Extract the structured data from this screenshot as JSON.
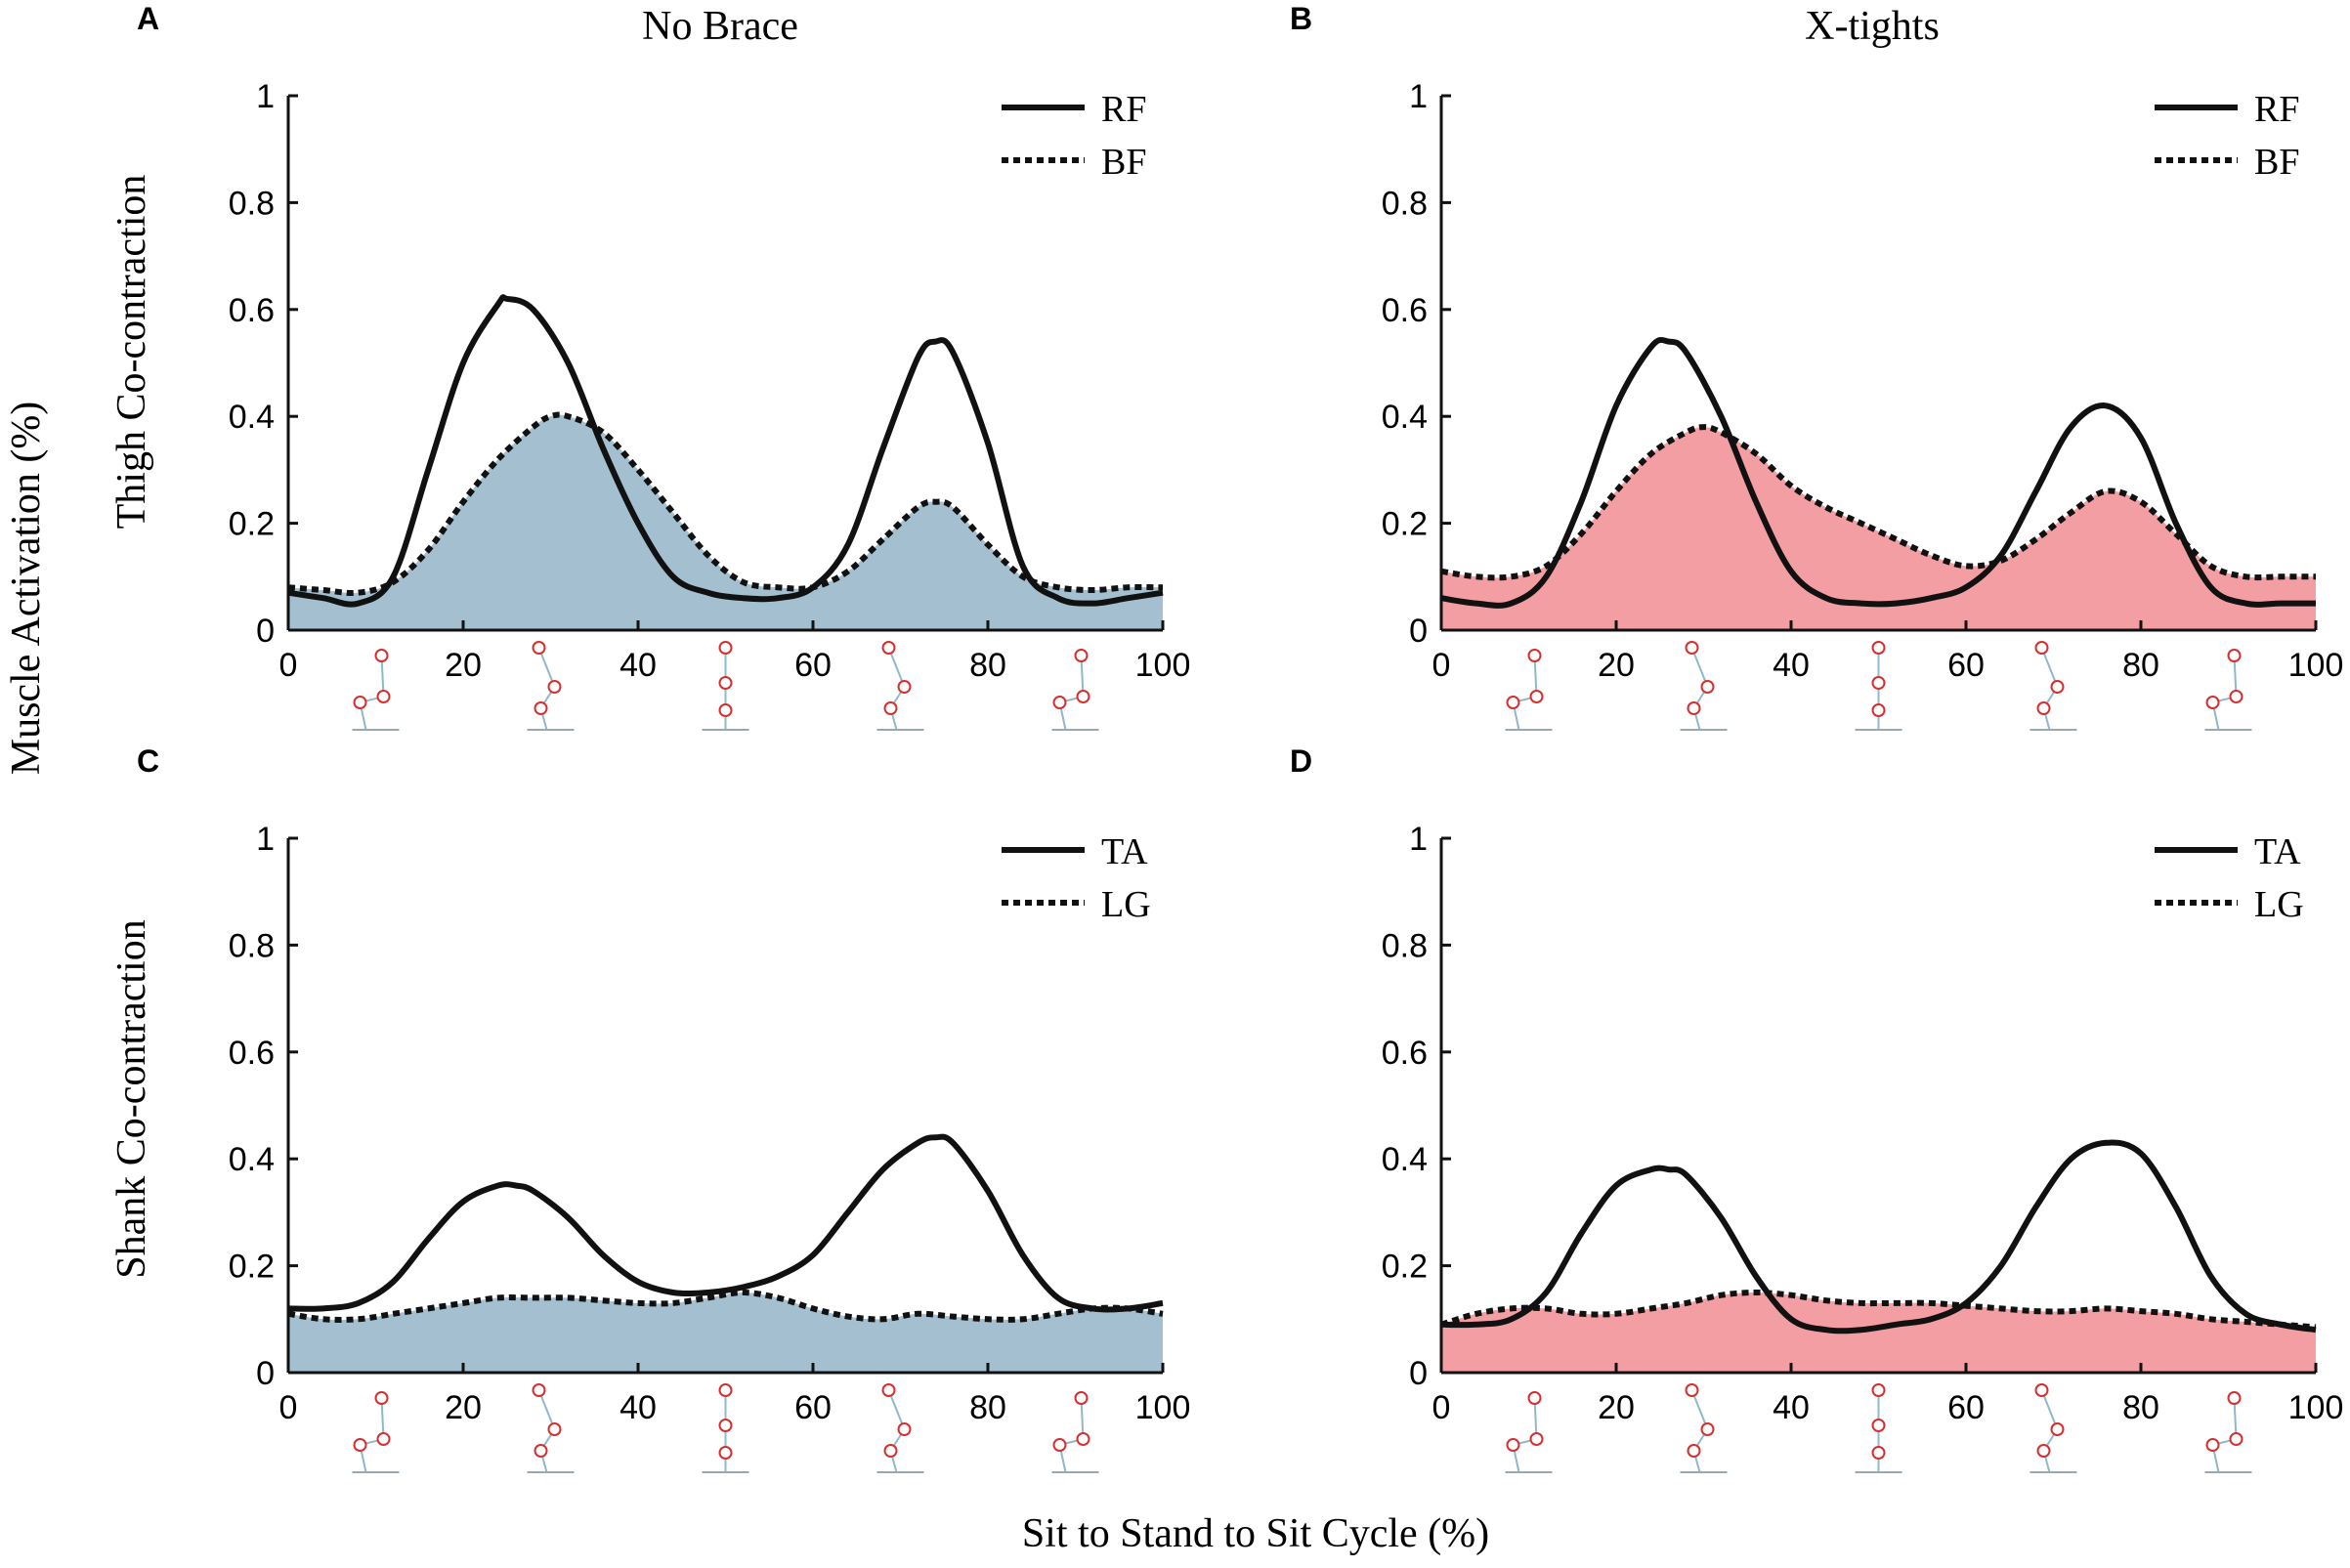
{
  "figure": {
    "ylabel": "Muscle Activation (%)",
    "xlabel": "Sit to Stand to Sit Cycle (%)",
    "col_titles": [
      "No Brace",
      "X-tights"
    ],
    "row_labels": [
      "Thigh Co-contraction",
      "Shank Co-contraction"
    ],
    "colors": {
      "no_brace_fill": "#a3bfd0",
      "x_tights_fill": "#f29ea3",
      "line": "#111111",
      "axis": "#111111",
      "figure_joint": "#d62f2f",
      "figure_limb": "#8fb8cc"
    }
  },
  "chart_data": [
    {
      "panel": "A",
      "type": "line",
      "title": "No Brace",
      "ylabel": "Thigh Co-contraction",
      "xlabel": "",
      "xlim": [
        0,
        100
      ],
      "ylim": [
        0,
        1
      ],
      "xticks": [
        0,
        20,
        40,
        60,
        80,
        100
      ],
      "yticks": [
        0,
        0.2,
        0.4,
        0.6,
        0.8,
        1
      ],
      "ytick_labels": [
        "0",
        "0.2",
        "0.4",
        "0.6",
        "0.8",
        "1"
      ],
      "fill_color": "#a3bfd0",
      "legend": [
        "RF",
        "BF"
      ],
      "series": [
        {
          "name": "RF",
          "style": "solid",
          "x": [
            0,
            4,
            8,
            12,
            16,
            20,
            24,
            25,
            28,
            32,
            36,
            40,
            44,
            48,
            52,
            56,
            60,
            64,
            68,
            72,
            74,
            76,
            80,
            84,
            88,
            92,
            96,
            100
          ],
          "values": [
            0.07,
            0.06,
            0.05,
            0.1,
            0.3,
            0.5,
            0.61,
            0.62,
            0.6,
            0.5,
            0.34,
            0.2,
            0.1,
            0.07,
            0.06,
            0.06,
            0.08,
            0.16,
            0.34,
            0.51,
            0.54,
            0.52,
            0.35,
            0.12,
            0.06,
            0.05,
            0.06,
            0.07
          ]
        },
        {
          "name": "BF",
          "style": "dotted",
          "x": [
            0,
            4,
            8,
            12,
            16,
            20,
            24,
            28,
            30,
            32,
            36,
            40,
            44,
            48,
            52,
            56,
            60,
            64,
            68,
            72,
            74,
            76,
            80,
            84,
            88,
            92,
            96,
            100
          ],
          "values": [
            0.08,
            0.075,
            0.07,
            0.09,
            0.15,
            0.24,
            0.32,
            0.38,
            0.4,
            0.4,
            0.37,
            0.3,
            0.22,
            0.14,
            0.09,
            0.08,
            0.08,
            0.11,
            0.17,
            0.23,
            0.24,
            0.23,
            0.16,
            0.1,
            0.08,
            0.075,
            0.08,
            0.08
          ]
        }
      ]
    },
    {
      "panel": "B",
      "type": "line",
      "title": "X-tights",
      "ylabel": "Thigh Co-contraction",
      "xlabel": "",
      "xlim": [
        0,
        100
      ],
      "ylim": [
        0,
        1
      ],
      "xticks": [
        0,
        20,
        40,
        60,
        80,
        100
      ],
      "yticks": [
        0,
        0.2,
        0.4,
        0.6,
        0.8,
        1
      ],
      "ytick_labels": [
        "0",
        "0.2",
        "0.4",
        "0.6",
        "0.8",
        "1"
      ],
      "fill_color": "#f29ea3",
      "legend": [
        "RF",
        "BF"
      ],
      "series": [
        {
          "name": "RF",
          "style": "solid",
          "x": [
            0,
            4,
            8,
            12,
            16,
            20,
            24,
            26,
            28,
            32,
            36,
            40,
            44,
            48,
            52,
            56,
            60,
            64,
            68,
            72,
            76,
            80,
            84,
            88,
            92,
            96,
            100
          ],
          "values": [
            0.06,
            0.05,
            0.05,
            0.1,
            0.24,
            0.42,
            0.53,
            0.54,
            0.52,
            0.4,
            0.24,
            0.11,
            0.06,
            0.05,
            0.05,
            0.06,
            0.08,
            0.14,
            0.26,
            0.38,
            0.42,
            0.36,
            0.2,
            0.08,
            0.05,
            0.05,
            0.05
          ]
        },
        {
          "name": "BF",
          "style": "dotted",
          "x": [
            0,
            4,
            8,
            12,
            16,
            20,
            24,
            28,
            30,
            32,
            36,
            40,
            44,
            48,
            52,
            56,
            60,
            64,
            68,
            72,
            76,
            80,
            84,
            88,
            92,
            96,
            100
          ],
          "values": [
            0.11,
            0.1,
            0.1,
            0.12,
            0.18,
            0.26,
            0.33,
            0.37,
            0.38,
            0.37,
            0.33,
            0.27,
            0.23,
            0.2,
            0.17,
            0.14,
            0.12,
            0.13,
            0.17,
            0.22,
            0.26,
            0.24,
            0.18,
            0.12,
            0.1,
            0.1,
            0.1
          ]
        }
      ]
    },
    {
      "panel": "C",
      "type": "line",
      "title": "",
      "ylabel": "Shank Co-contraction",
      "xlabel": "",
      "xlim": [
        0,
        100
      ],
      "ylim": [
        0,
        1
      ],
      "xticks": [
        0,
        20,
        40,
        60,
        80,
        100
      ],
      "yticks": [
        0,
        0.2,
        0.4,
        0.6,
        0.8,
        1
      ],
      "ytick_labels": [
        "0",
        "0.2",
        "0.4",
        "0.6",
        "0.8",
        "1"
      ],
      "fill_color": "#a3bfd0",
      "legend": [
        "TA",
        "LG"
      ],
      "series": [
        {
          "name": "TA",
          "style": "solid",
          "x": [
            0,
            4,
            8,
            12,
            16,
            20,
            24,
            26,
            28,
            32,
            36,
            40,
            44,
            48,
            52,
            56,
            60,
            64,
            68,
            72,
            74,
            76,
            80,
            84,
            88,
            92,
            96,
            100
          ],
          "values": [
            0.12,
            0.12,
            0.13,
            0.17,
            0.25,
            0.32,
            0.35,
            0.35,
            0.34,
            0.29,
            0.22,
            0.17,
            0.15,
            0.15,
            0.16,
            0.18,
            0.22,
            0.3,
            0.38,
            0.43,
            0.44,
            0.43,
            0.34,
            0.22,
            0.14,
            0.12,
            0.12,
            0.13
          ]
        },
        {
          "name": "LG",
          "style": "dotted",
          "x": [
            0,
            4,
            8,
            12,
            16,
            20,
            24,
            28,
            32,
            36,
            40,
            44,
            48,
            52,
            56,
            60,
            64,
            68,
            72,
            76,
            80,
            84,
            88,
            92,
            96,
            100
          ],
          "values": [
            0.11,
            0.1,
            0.1,
            0.11,
            0.12,
            0.13,
            0.14,
            0.14,
            0.14,
            0.135,
            0.13,
            0.13,
            0.14,
            0.15,
            0.14,
            0.12,
            0.105,
            0.1,
            0.11,
            0.105,
            0.1,
            0.1,
            0.11,
            0.12,
            0.12,
            0.11
          ]
        }
      ]
    },
    {
      "panel": "D",
      "type": "line",
      "title": "",
      "ylabel": "Shank Co-contraction",
      "xlabel": "",
      "xlim": [
        0,
        100
      ],
      "ylim": [
        0,
        1
      ],
      "xticks": [
        0,
        20,
        40,
        60,
        80,
        100
      ],
      "yticks": [
        0,
        0.2,
        0.4,
        0.6,
        0.8,
        1
      ],
      "ytick_labels": [
        "0",
        "0.2",
        "0.4",
        "0.6",
        "0.8",
        "1"
      ],
      "fill_color": "#f29ea3",
      "legend": [
        "TA",
        "LG"
      ],
      "series": [
        {
          "name": "TA",
          "style": "solid",
          "x": [
            0,
            4,
            8,
            12,
            16,
            20,
            24,
            26,
            28,
            32,
            36,
            40,
            44,
            48,
            52,
            56,
            60,
            64,
            68,
            72,
            76,
            80,
            84,
            88,
            92,
            96,
            100
          ],
          "values": [
            0.09,
            0.09,
            0.1,
            0.15,
            0.26,
            0.35,
            0.38,
            0.38,
            0.37,
            0.29,
            0.18,
            0.1,
            0.08,
            0.08,
            0.09,
            0.1,
            0.13,
            0.2,
            0.31,
            0.4,
            0.43,
            0.41,
            0.31,
            0.18,
            0.11,
            0.09,
            0.08
          ]
        },
        {
          "name": "LG",
          "style": "dotted",
          "x": [
            0,
            4,
            8,
            12,
            16,
            20,
            24,
            28,
            32,
            36,
            40,
            44,
            48,
            52,
            56,
            60,
            64,
            68,
            72,
            76,
            80,
            84,
            88,
            92,
            96,
            100
          ],
          "values": [
            0.09,
            0.11,
            0.12,
            0.12,
            0.11,
            0.11,
            0.12,
            0.13,
            0.145,
            0.15,
            0.145,
            0.135,
            0.13,
            0.13,
            0.13,
            0.125,
            0.12,
            0.115,
            0.115,
            0.12,
            0.115,
            0.11,
            0.1,
            0.095,
            0.09,
            0.085
          ]
        }
      ]
    }
  ]
}
